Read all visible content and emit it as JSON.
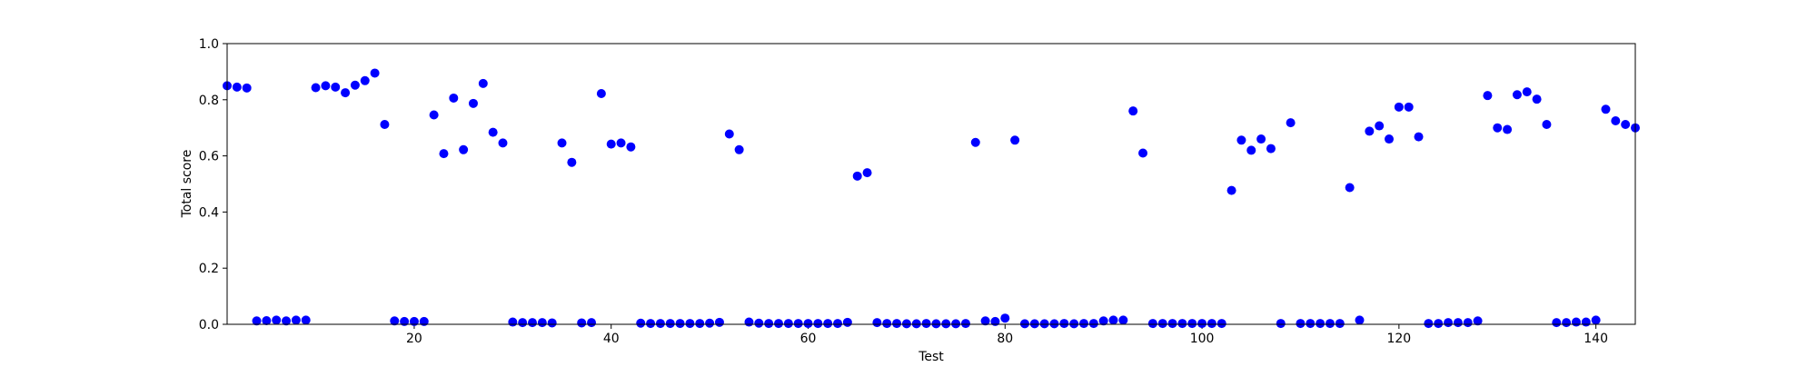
{
  "chart_data": {
    "type": "scatter",
    "title": "",
    "xlabel": "Test",
    "ylabel": "Total score",
    "xlim": [
      1,
      144
    ],
    "ylim": [
      0.0,
      1.0
    ],
    "x_ticks": [
      20,
      40,
      60,
      80,
      100,
      120,
      140
    ],
    "y_ticks": [
      0.0,
      0.2,
      0.4,
      0.6,
      0.8,
      1.0
    ],
    "y_tick_labels": [
      "0.0",
      "0.2",
      "0.4",
      "0.6",
      "0.8",
      "1.0"
    ],
    "grid": false,
    "marker_color": "#0000ff",
    "points": [
      [
        1,
        0.85
      ],
      [
        2,
        0.845
      ],
      [
        3,
        0.842
      ],
      [
        4,
        0.012
      ],
      [
        5,
        0.013
      ],
      [
        6,
        0.015
      ],
      [
        7,
        0.012
      ],
      [
        8,
        0.015
      ],
      [
        9,
        0.015
      ],
      [
        10,
        0.843
      ],
      [
        11,
        0.85
      ],
      [
        12,
        0.845
      ],
      [
        13,
        0.825
      ],
      [
        14,
        0.852
      ],
      [
        15,
        0.868
      ],
      [
        16,
        0.895
      ],
      [
        17,
        0.712
      ],
      [
        18,
        0.012
      ],
      [
        19,
        0.01
      ],
      [
        20,
        0.01
      ],
      [
        21,
        0.01
      ],
      [
        22,
        0.746
      ],
      [
        23,
        0.608
      ],
      [
        24,
        0.806
      ],
      [
        25,
        0.622
      ],
      [
        26,
        0.787
      ],
      [
        27,
        0.858
      ],
      [
        28,
        0.684
      ],
      [
        29,
        0.646
      ],
      [
        30,
        0.008
      ],
      [
        31,
        0.006
      ],
      [
        32,
        0.006
      ],
      [
        33,
        0.006
      ],
      [
        34,
        0.005
      ],
      [
        35,
        0.646
      ],
      [
        36,
        0.577
      ],
      [
        37,
        0.005
      ],
      [
        38,
        0.006
      ],
      [
        39,
        0.822
      ],
      [
        40,
        0.642
      ],
      [
        41,
        0.646
      ],
      [
        42,
        0.632
      ],
      [
        43,
        0.004
      ],
      [
        44,
        0.003
      ],
      [
        45,
        0.003
      ],
      [
        46,
        0.003
      ],
      [
        47,
        0.003
      ],
      [
        48,
        0.003
      ],
      [
        49,
        0.003
      ],
      [
        50,
        0.004
      ],
      [
        51,
        0.007
      ],
      [
        52,
        0.678
      ],
      [
        53,
        0.622
      ],
      [
        54,
        0.008
      ],
      [
        55,
        0.004
      ],
      [
        56,
        0.003
      ],
      [
        57,
        0.003
      ],
      [
        58,
        0.003
      ],
      [
        59,
        0.003
      ],
      [
        60,
        0.003
      ],
      [
        61,
        0.003
      ],
      [
        62,
        0.003
      ],
      [
        63,
        0.003
      ],
      [
        64,
        0.007
      ],
      [
        65,
        0.528
      ],
      [
        66,
        0.54
      ],
      [
        67,
        0.006
      ],
      [
        68,
        0.003
      ],
      [
        69,
        0.003
      ],
      [
        70,
        0.002
      ],
      [
        71,
        0.002
      ],
      [
        72,
        0.003
      ],
      [
        73,
        0.002
      ],
      [
        74,
        0.002
      ],
      [
        75,
        0.002
      ],
      [
        76,
        0.003
      ],
      [
        77,
        0.648
      ],
      [
        78,
        0.012
      ],
      [
        79,
        0.01
      ],
      [
        80,
        0.022
      ],
      [
        81,
        0.656
      ],
      [
        82,
        0.002
      ],
      [
        83,
        0.002
      ],
      [
        84,
        0.002
      ],
      [
        85,
        0.002
      ],
      [
        86,
        0.003
      ],
      [
        87,
        0.002
      ],
      [
        88,
        0.003
      ],
      [
        89,
        0.003
      ],
      [
        90,
        0.012
      ],
      [
        91,
        0.015
      ],
      [
        92,
        0.015
      ],
      [
        93,
        0.76
      ],
      [
        94,
        0.61
      ],
      [
        95,
        0.003
      ],
      [
        96,
        0.003
      ],
      [
        97,
        0.003
      ],
      [
        98,
        0.003
      ],
      [
        99,
        0.003
      ],
      [
        100,
        0.003
      ],
      [
        101,
        0.003
      ],
      [
        102,
        0.003
      ],
      [
        103,
        0.477
      ],
      [
        104,
        0.656
      ],
      [
        105,
        0.62
      ],
      [
        106,
        0.66
      ],
      [
        107,
        0.626
      ],
      [
        108,
        0.003
      ],
      [
        109,
        0.718
      ],
      [
        110,
        0.003
      ],
      [
        111,
        0.003
      ],
      [
        112,
        0.003
      ],
      [
        113,
        0.003
      ],
      [
        114,
        0.003
      ],
      [
        115,
        0.487
      ],
      [
        116,
        0.015
      ],
      [
        117,
        0.688
      ],
      [
        118,
        0.707
      ],
      [
        119,
        0.66
      ],
      [
        120,
        0.774
      ],
      [
        121,
        0.774
      ],
      [
        122,
        0.668
      ],
      [
        123,
        0.003
      ],
      [
        124,
        0.003
      ],
      [
        125,
        0.006
      ],
      [
        126,
        0.006
      ],
      [
        127,
        0.006
      ],
      [
        128,
        0.012
      ],
      [
        129,
        0.815
      ],
      [
        130,
        0.7
      ],
      [
        131,
        0.694
      ],
      [
        132,
        0.818
      ],
      [
        133,
        0.828
      ],
      [
        134,
        0.802
      ],
      [
        135,
        0.712
      ],
      [
        136,
        0.006
      ],
      [
        137,
        0.006
      ],
      [
        138,
        0.008
      ],
      [
        139,
        0.008
      ],
      [
        140,
        0.015
      ],
      [
        141,
        0.766
      ],
      [
        142,
        0.725
      ],
      [
        143,
        0.712
      ],
      [
        144,
        0.7
      ]
    ]
  }
}
